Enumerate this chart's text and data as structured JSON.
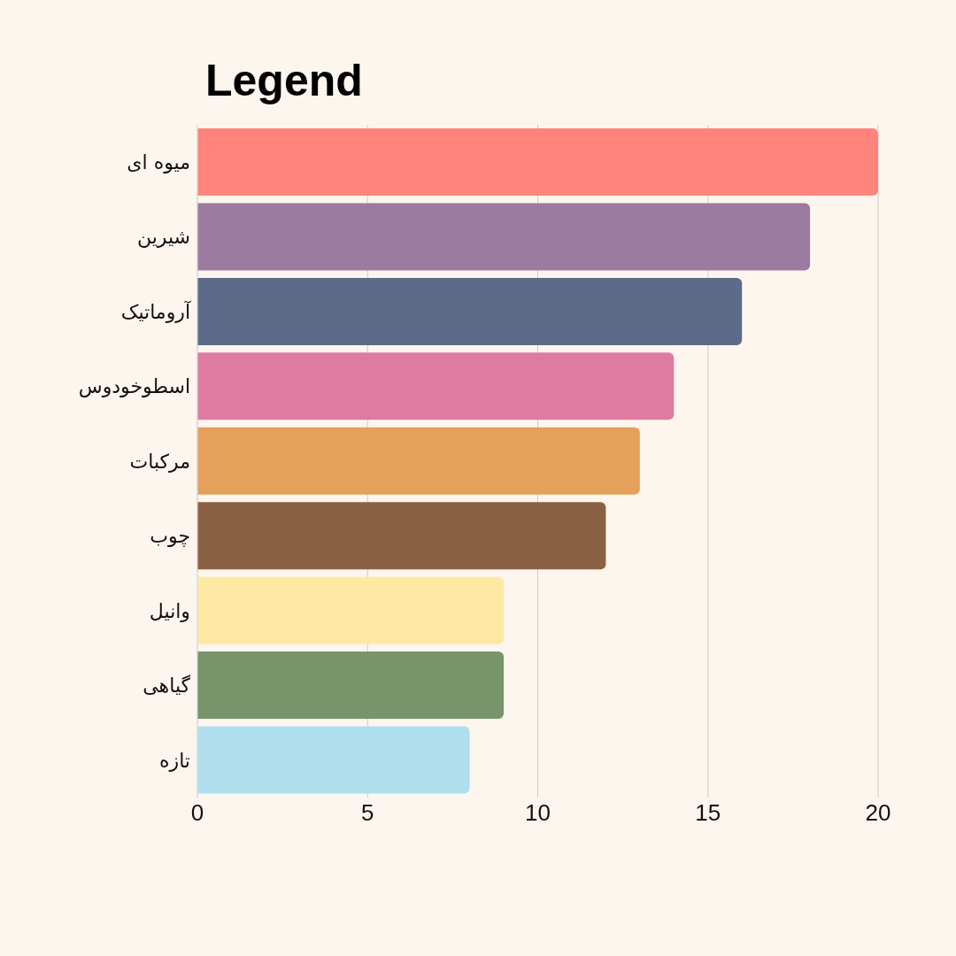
{
  "chart_data": {
    "type": "bar",
    "title": "Legend",
    "orientation": "horizontal",
    "categories": [
      "میوه ای",
      "شیرین",
      "آروماتیک",
      "اسطوخودوس",
      "مرکبات",
      "چوب",
      "وانیل",
      "گیاهی",
      "تازه"
    ],
    "values": [
      20,
      18,
      16,
      14,
      13,
      12,
      9,
      9,
      8
    ],
    "colors": [
      "#ff847c",
      "#9a7b9f",
      "#5d6b88",
      "#de7ba1",
      "#e5a05c",
      "#8a6142",
      "#fde9a3",
      "#77946b",
      "#b0dfee"
    ],
    "xlim": [
      0,
      20
    ],
    "xticks": [
      0,
      5,
      10,
      15,
      20
    ],
    "grid": "x",
    "legend": false
  }
}
